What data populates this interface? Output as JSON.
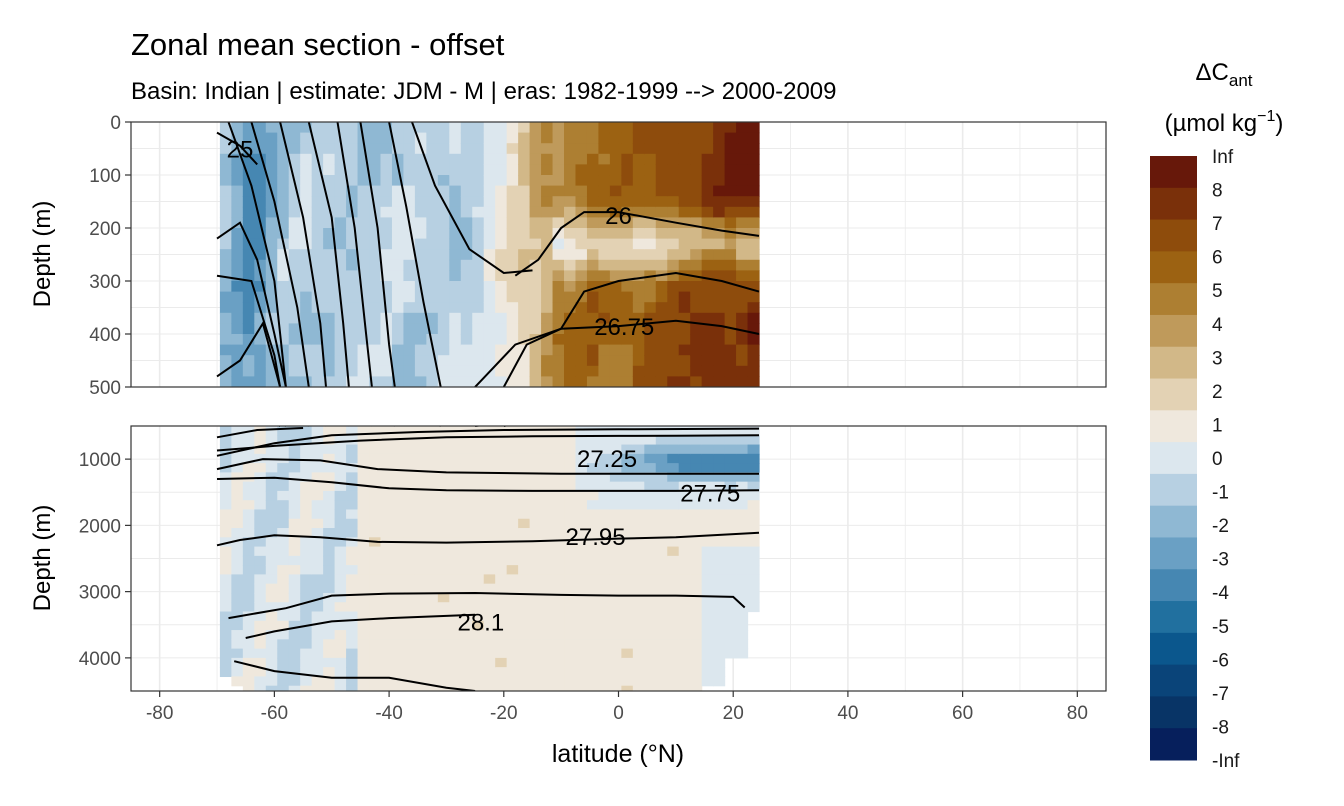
{
  "chart_data": {
    "type": "heatmap",
    "title": "Zonal mean section - offset",
    "subtitle": "Basin: Indian | estimate: JDM - M | eras: 1982-1999 --> 2000-2009",
    "xlabel": "latitude (°N)",
    "ylabel": "Depth (m)",
    "xlim": [
      -85,
      85
    ],
    "xticks": [
      -80,
      -60,
      -40,
      -20,
      0,
      20,
      40,
      60,
      80
    ],
    "data_lat_range": [
      -69.5,
      24.5
    ],
    "grid": true,
    "panels": [
      {
        "name": "upper",
        "ylim": [
          0,
          500
        ],
        "yticks": [
          0,
          100,
          200,
          300,
          400,
          500
        ]
      },
      {
        "name": "lower",
        "ylim": [
          500,
          4500
        ],
        "yticks": [
          1000,
          2000,
          3000,
          4000
        ]
      }
    ],
    "legend": {
      "title_main": "ΔC",
      "title_sub": "ant",
      "unit_text": "(µmol kg",
      "unit_sup": "−1",
      "unit_close": ")",
      "position": "right",
      "breaks": [
        "Inf",
        "8",
        "7",
        "6",
        "5",
        "4",
        "3",
        "2",
        "1",
        "0",
        "-1",
        "-2",
        "-3",
        "-4",
        "-5",
        "-6",
        "-7",
        "-8",
        "-Inf"
      ],
      "colors": [
        "#67180a",
        "#7a300a",
        "#8e4c0c",
        "#9c6212",
        "#ad7f32",
        "#bf9a5b",
        "#d2b888",
        "#e3d2b4",
        "#efe8dd",
        "#dce7ee",
        "#b7d0e2",
        "#8fb8d3",
        "#6aa0c4",
        "#4687b2",
        "#21709f",
        "#0b578d",
        "#0a4479",
        "#083466",
        "#061f5c"
      ]
    },
    "contours": [
      {
        "label": "27.25",
        "label_pos": [
          -2,
          980
        ],
        "points": [
          [
            -70,
            870
          ],
          [
            -60,
            800
          ],
          [
            -45,
            720
          ],
          [
            -30,
            670
          ],
          [
            -15,
            655
          ],
          [
            0,
            650
          ],
          [
            10,
            648
          ],
          [
            24.5,
            640
          ]
        ]
      },
      {
        "label": "27.75",
        "label_pos": [
          16,
          1500
        ],
        "points": [
          [
            -70,
            1300
          ],
          [
            -60,
            1280
          ],
          [
            -50,
            1350
          ],
          [
            -40,
            1440
          ],
          [
            -30,
            1470
          ],
          [
            -15,
            1480
          ],
          [
            0,
            1480
          ],
          [
            10,
            1480
          ],
          [
            24.5,
            1470
          ]
        ]
      },
      {
        "label": "27.95",
        "label_pos": [
          -4,
          2160
        ],
        "points": [
          [
            -70,
            2300
          ],
          [
            -66,
            2220
          ],
          [
            -60,
            2150
          ],
          [
            -52,
            2180
          ],
          [
            -42,
            2250
          ],
          [
            -30,
            2260
          ],
          [
            -15,
            2240
          ],
          [
            0,
            2200
          ],
          [
            10,
            2180
          ],
          [
            24.5,
            2110
          ]
        ]
      },
      {
        "label": "28.1",
        "label_pos": [
          -24,
          3450
        ],
        "points": [
          [
            -68,
            3400
          ],
          [
            -58,
            3250
          ],
          [
            -50,
            3060
          ],
          [
            -40,
            3030
          ],
          [
            -25,
            3020
          ],
          [
            -10,
            3050
          ],
          [
            0,
            3060
          ],
          [
            10,
            3060
          ],
          [
            20,
            3080
          ],
          [
            22,
            3240
          ]
        ]
      },
      {
        "label": "26",
        "label_pos": [
          0,
          175
        ],
        "points": [
          [
            -18,
            290
          ],
          [
            -14,
            260
          ],
          [
            -10,
            200
          ],
          [
            -6,
            170
          ],
          [
            0,
            170
          ],
          [
            10,
            190
          ],
          [
            18,
            205
          ],
          [
            24.5,
            215
          ]
        ]
      },
      {
        "label": "26.75",
        "label_pos": [
          1,
          385
        ],
        "points": [
          [
            -25,
            500
          ],
          [
            -18,
            420
          ],
          [
            -10,
            390
          ],
          [
            0,
            385
          ],
          [
            10,
            375
          ],
          [
            18,
            385
          ],
          [
            24.5,
            400
          ]
        ]
      },
      {
        "label": "25",
        "label_pos": [
          -66,
          50
        ],
        "points": [
          [
            -70,
            20
          ],
          [
            -66,
            45
          ],
          [
            -63,
            80
          ]
        ]
      }
    ]
  }
}
